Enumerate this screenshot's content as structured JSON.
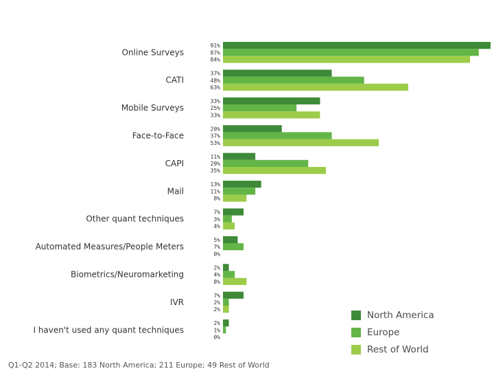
{
  "chart_data": {
    "type": "bar",
    "orientation": "horizontal",
    "title": "",
    "xlabel": "",
    "ylabel": "",
    "xlim": [
      0,
      91
    ],
    "grid": false,
    "legend_position": "bottom-right",
    "categories": [
      "Online Surveys",
      "CATI",
      "Mobile Surveys",
      "Face-to-Face",
      "CAPI",
      "Mail",
      "Other quant techniques",
      "Automated Measures/People Meters",
      "Biometrics/Neuromarketing",
      "IVR",
      "I haven't used any quant techniques"
    ],
    "series": [
      {
        "name": "North America",
        "color": "#3f8a38",
        "values": [
          91,
          37,
          33,
          20,
          11,
          13,
          7,
          5,
          2,
          7,
          2
        ]
      },
      {
        "name": "Europe",
        "color": "#63b547",
        "values": [
          87,
          48,
          25,
          37,
          29,
          11,
          3,
          7,
          4,
          2,
          1
        ]
      },
      {
        "name": "Rest of World",
        "color": "#9ccc49",
        "values": [
          84,
          63,
          33,
          53,
          35,
          8,
          4,
          0,
          8,
          2,
          0
        ]
      }
    ],
    "value_suffix": "%"
  },
  "footnote": "Q1-Q2 2014; Base: 183 North America; 211 Europe; 49 Rest of World"
}
